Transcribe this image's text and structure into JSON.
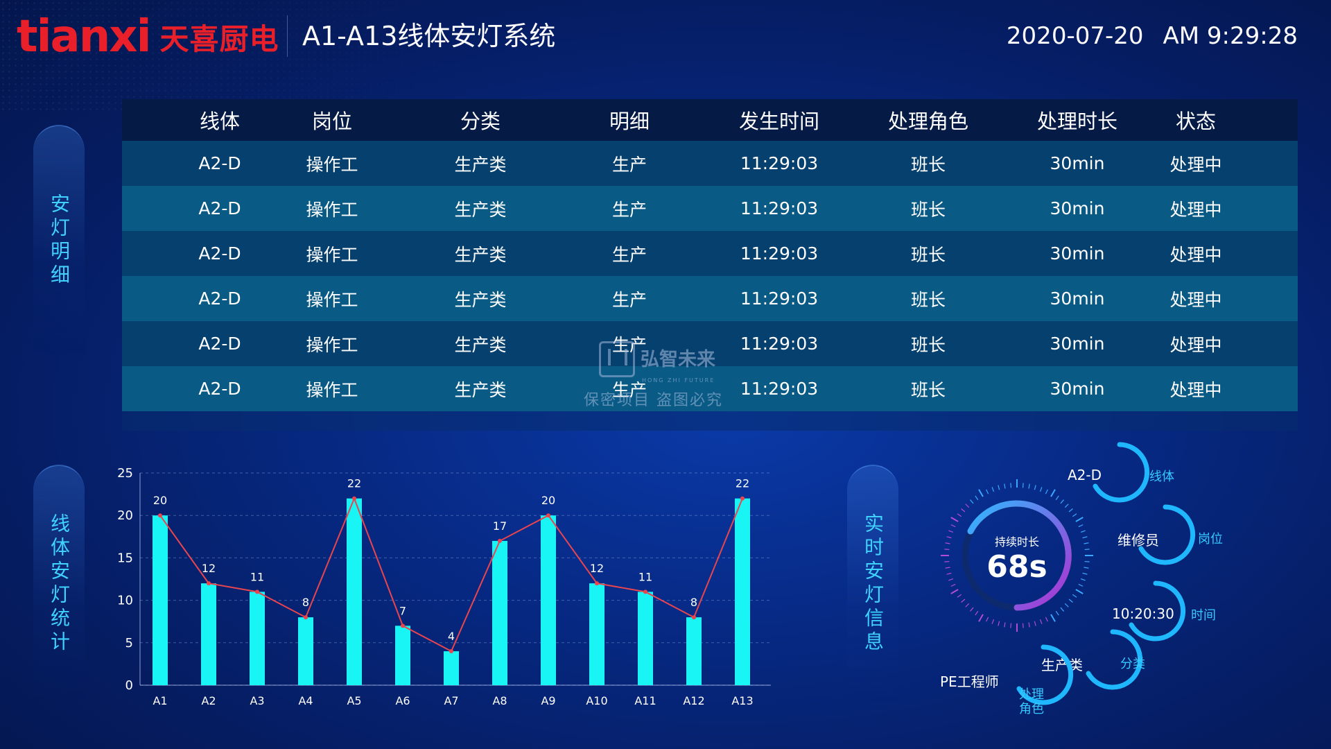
{
  "header": {
    "logo_latin": "tianxi",
    "logo_cn": "天喜厨电",
    "title": "A1-A13线体安灯系统",
    "date": "2020-07-20",
    "time": "AM 9:29:28"
  },
  "side_labels": {
    "detail": "安灯明细",
    "stats": "线体安灯统计",
    "realtime": "实时安灯信息"
  },
  "table": {
    "columns": [
      "线体",
      "岗位",
      "分类",
      "明细",
      "发生时间",
      "处理角色",
      "处理时长",
      "状态"
    ],
    "rows": [
      [
        "A2-D",
        "操作工",
        "生产类",
        "生产",
        "11:29:03",
        "班长",
        "30min",
        "处理中"
      ],
      [
        "A2-D",
        "操作工",
        "生产类",
        "生产",
        "11:29:03",
        "班长",
        "30min",
        "处理中"
      ],
      [
        "A2-D",
        "操作工",
        "生产类",
        "生产",
        "11:29:03",
        "班长",
        "30min",
        "处理中"
      ],
      [
        "A2-D",
        "操作工",
        "生产类",
        "生产",
        "11:29:03",
        "班长",
        "30min",
        "处理中"
      ],
      [
        "A2-D",
        "操作工",
        "生产类",
        "生产",
        "11:29:03",
        "班长",
        "30min",
        "处理中"
      ],
      [
        "A2-D",
        "操作工",
        "生产类",
        "生产",
        "11:29:03",
        "班长",
        "30min",
        "处理中"
      ]
    ]
  },
  "watermark": {
    "brand": "弘智未来",
    "sub": "HONG ZHI FUTURE",
    "text": "保密项目  盗图必究"
  },
  "chart_data": {
    "type": "bar",
    "categories": [
      "A1",
      "A2",
      "A3",
      "A4",
      "A5",
      "A6",
      "A7",
      "A8",
      "A9",
      "A10",
      "A11",
      "A12",
      "A13"
    ],
    "values": [
      20,
      12,
      11,
      8,
      22,
      7,
      4,
      17,
      20,
      12,
      11,
      8,
      22
    ],
    "overlay_line": true,
    "title": "",
    "xlabel": "",
    "ylabel": "",
    "ylim": [
      0,
      25
    ],
    "yticks": [
      0,
      5,
      10,
      15,
      20,
      25
    ],
    "grid": true,
    "bar_color": "#19f4f4",
    "line_color": "#e9454f"
  },
  "realtime": {
    "duration_label": "持续时长",
    "duration_value": "68s",
    "items": [
      {
        "value": "A2-D",
        "caption": "线体"
      },
      {
        "value": "维修员",
        "caption": "岗位"
      },
      {
        "value": "10:20:30",
        "caption": "时间"
      },
      {
        "value": "生产类",
        "caption": "分类"
      },
      {
        "value": "PE工程师",
        "caption": "处理\n角色"
      }
    ]
  },
  "colors": {
    "accent": "#3fd2ff",
    "logo_red": "#e9202a",
    "table_header": "#051a45"
  }
}
